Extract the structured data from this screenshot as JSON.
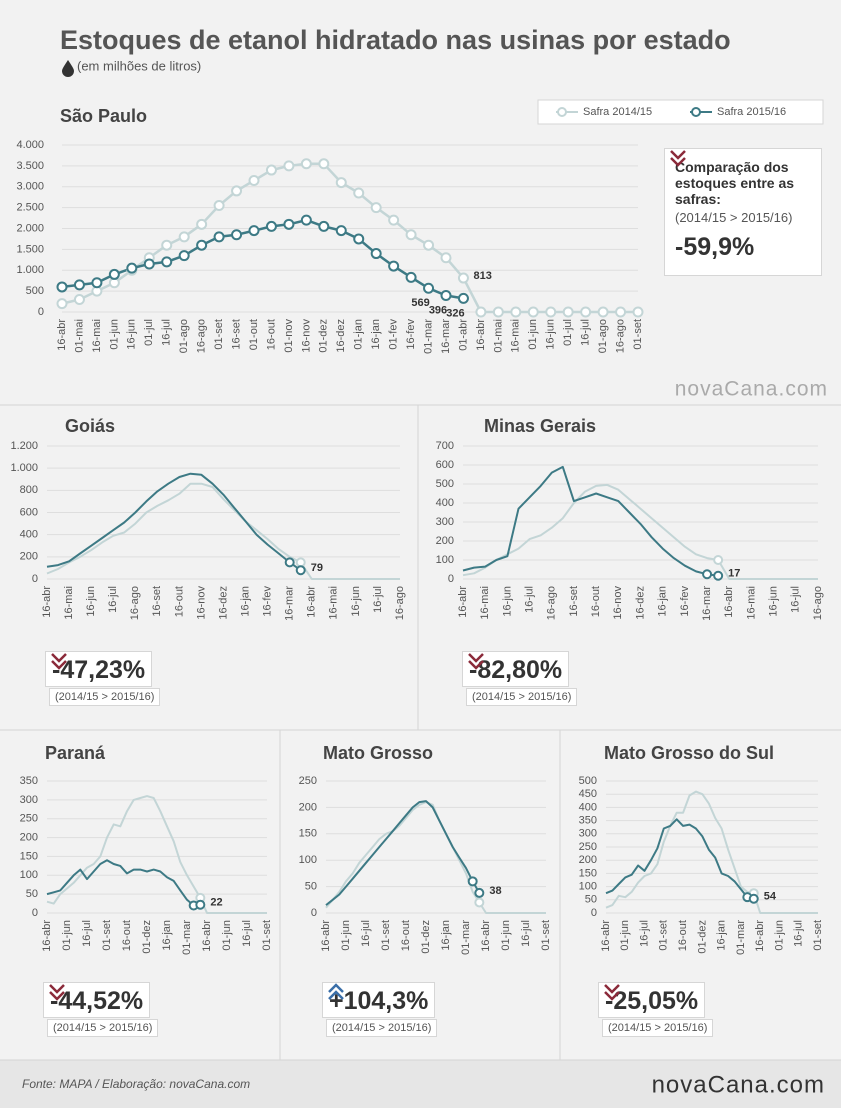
{
  "title": "Estoques de etanol hidratado nas usinas por estado",
  "subtitle": "(em milhões de litros)",
  "source": "Fonte: MAPA  / Elaboração: novaCana.com",
  "logo": "novaCana.com",
  "chart_data": [
    {
      "type": "line",
      "title": "São Paulo",
      "categories": [
        "16-abr",
        "01-mai",
        "16-mai",
        "01-jun",
        "16-jun",
        "01-jul",
        "16-jul",
        "01-ago",
        "16-ago",
        "01-set",
        "16-set",
        "01-out",
        "16-out",
        "01-nov",
        "16-nov",
        "01-dez",
        "16-dez",
        "01-jan",
        "16-jan",
        "01-fev",
        "16-fev",
        "01-mar",
        "16-mar",
        "01-abr",
        "16-abr",
        "01-mai",
        "16-mai",
        "01-jun",
        "16-jun",
        "01-jul",
        "16-jul",
        "01-ago",
        "16-ago",
        "01-set"
      ],
      "series": [
        {
          "name": "Safra 2014/15",
          "color": "#c3d5d6",
          "labeled": [
            23
          ],
          "values": [
            200,
            300,
            500,
            700,
            1000,
            1300,
            1600,
            1800,
            2100,
            2550,
            2900,
            3150,
            3400,
            3500,
            3550,
            3550,
            3100,
            2850,
            2500,
            2200,
            1850,
            1600,
            1300,
            813,
            0,
            0,
            0,
            0,
            0,
            0,
            0,
            0,
            0,
            0
          ]
        },
        {
          "name": "Safra 2015/16",
          "color": "#3d7a85",
          "labeled": [
            21,
            22,
            23
          ],
          "values": [
            600,
            650,
            700,
            900,
            1050,
            1150,
            1200,
            1350,
            1600,
            1800,
            1850,
            1950,
            2050,
            2100,
            2200,
            2050,
            1950,
            1750,
            1400,
            1100,
            830,
            569,
            396,
            326,
            null,
            null,
            null,
            null,
            null,
            null,
            null,
            null,
            null,
            null
          ]
        }
      ],
      "markers": "all",
      "ylim": [
        0,
        4000
      ],
      "yticks": [
        0,
        500,
        {
          "value": 1000,
          "label": "1.000"
        },
        {
          "value": 1500,
          "label": "1.500"
        },
        {
          "value": 2000,
          "label": "2.000"
        },
        {
          "value": 2500,
          "label": "2.500"
        },
        {
          "value": 3000,
          "label": "3.000"
        },
        {
          "value": 3500,
          "label": "3.500"
        },
        {
          "value": 4000,
          "label": "4.000"
        }
      ],
      "grid": true,
      "legend": "top-right",
      "comparison": {
        "heading": "Comparação dos estoques entre as safras:",
        "note": "(2014/15 > 2015/16)",
        "change": "-59,9%",
        "trend": "down"
      }
    },
    {
      "type": "line",
      "title": "Goiás",
      "categories": [
        "16-abr",
        null,
        "16-mai",
        null,
        "16-jun",
        null,
        "16-jul",
        null,
        "16-ago",
        null,
        "16-set",
        null,
        "16-out",
        null,
        "16-nov",
        null,
        "16-dez",
        null,
        "16-jan",
        null,
        "16-fev",
        null,
        "16-mar",
        null,
        "16-abr",
        null,
        "16-mai",
        null,
        "16-jun",
        null,
        "16-jul",
        null,
        "16-ago"
      ],
      "series": [
        {
          "color": "#c3d5d6",
          "marked": [
            23
          ],
          "values": [
            50,
            90,
            150,
            200,
            260,
            330,
            390,
            420,
            500,
            600,
            660,
            710,
            770,
            860,
            860,
            830,
            720,
            620,
            520,
            440,
            360,
            270,
            200,
            150,
            0,
            0,
            0,
            0,
            0,
            0,
            0,
            0,
            0
          ]
        },
        {
          "color": "#3d7a85",
          "marked": [
            22,
            23
          ],
          "labeled": [
            23
          ],
          "values": [
            110,
            125,
            160,
            230,
            300,
            370,
            440,
            510,
            600,
            700,
            790,
            860,
            920,
            950,
            940,
            860,
            760,
            640,
            520,
            400,
            310,
            230,
            150,
            79,
            null,
            null,
            null,
            null,
            null,
            null,
            null,
            null,
            null
          ]
        }
      ],
      "ylim": [
        0,
        1200
      ],
      "yticks": [
        0,
        200,
        400,
        600,
        800,
        {
          "value": 1000,
          "label": "1.000"
        },
        {
          "value": 1200,
          "label": "1.200"
        }
      ],
      "grid": true,
      "comparison": {
        "note": "(2014/15 > 2015/16)",
        "change": "-47,23%",
        "trend": "down"
      }
    },
    {
      "type": "line",
      "title": "Minas Gerais",
      "categories": [
        "16-abr",
        null,
        "16-mai",
        null,
        "16-jun",
        null,
        "16-jul",
        null,
        "16-ago",
        null,
        "16-set",
        null,
        "16-out",
        null,
        "16-nov",
        null,
        "16-dez",
        null,
        "16-jan",
        null,
        "16-fev",
        null,
        "16-mar",
        null,
        "16-abr",
        null,
        "16-mai",
        null,
        "16-jun",
        null,
        "16-jul",
        null,
        "16-ago"
      ],
      "series": [
        {
          "color": "#c3d5d6",
          "marked": [
            23
          ],
          "values": [
            20,
            30,
            60,
            100,
            130,
            160,
            210,
            230,
            270,
            320,
            400,
            460,
            490,
            495,
            470,
            420,
            370,
            320,
            270,
            220,
            170,
            130,
            110,
            100,
            0,
            0,
            0,
            0,
            0,
            0,
            0,
            0,
            0
          ]
        },
        {
          "color": "#3d7a85",
          "marked": [
            22,
            23
          ],
          "labeled": [
            23
          ],
          "values": [
            45,
            60,
            65,
            100,
            120,
            370,
            430,
            490,
            560,
            590,
            410,
            430,
            450,
            430,
            410,
            350,
            290,
            220,
            160,
            110,
            70,
            40,
            25,
            17,
            null,
            null,
            null,
            null,
            null,
            null,
            null,
            null,
            null
          ]
        }
      ],
      "ylim": [
        0,
        700
      ],
      "yticks": [
        0,
        100,
        200,
        300,
        400,
        500,
        600,
        700
      ],
      "grid": true,
      "comparison": {
        "note": "(2014/15 > 2015/16)",
        "change": "-82,80%",
        "trend": "down"
      }
    },
    {
      "type": "line",
      "title": "Paraná",
      "categories": [
        "16-abr",
        null,
        null,
        "01-jun",
        null,
        null,
        "16-jul",
        null,
        null,
        "01-set",
        null,
        null,
        "16-out",
        null,
        null,
        "01-dez",
        null,
        null,
        "16-jan",
        null,
        null,
        "01-mar",
        null,
        null,
        "16-abr",
        null,
        null,
        "01-jun",
        null,
        null,
        "16-jul",
        null,
        null,
        "01-set"
      ],
      "series": [
        {
          "color": "#c3d5d6",
          "marked": [
            23
          ],
          "values": [
            30,
            25,
            50,
            65,
            80,
            100,
            120,
            130,
            150,
            200,
            235,
            230,
            270,
            300,
            305,
            310,
            305,
            270,
            230,
            190,
            135,
            100,
            70,
            40,
            0,
            0,
            0,
            0,
            0,
            0,
            0,
            0,
            0,
            0
          ]
        },
        {
          "color": "#3d7a85",
          "marked": [
            22,
            23
          ],
          "labeled": [
            23
          ],
          "values": [
            50,
            55,
            60,
            80,
            100,
            115,
            90,
            110,
            130,
            140,
            130,
            125,
            105,
            115,
            115,
            110,
            115,
            110,
            95,
            85,
            60,
            35,
            20,
            22,
            null,
            null,
            null,
            null,
            null,
            null,
            null,
            null,
            null,
            null
          ]
        }
      ],
      "ylim": [
        0,
        350
      ],
      "yticks": [
        0,
        50,
        100,
        150,
        200,
        250,
        300,
        350
      ],
      "grid": true,
      "comparison": {
        "note": "(2014/15 > 2015/16)",
        "change": "-44,52%",
        "trend": "down"
      }
    },
    {
      "type": "line",
      "title": "Mato Grosso",
      "categories": [
        "16-abr",
        null,
        null,
        "01-jun",
        null,
        null,
        "16-jul",
        null,
        null,
        "01-set",
        null,
        null,
        "16-out",
        null,
        null,
        "01-dez",
        null,
        null,
        "16-jan",
        null,
        null,
        "01-mar",
        null,
        null,
        "16-abr",
        null,
        null,
        "01-jun",
        null,
        null,
        "16-jul",
        null,
        null,
        "01-set"
      ],
      "series": [
        {
          "color": "#c3d5d6",
          "marked": [
            23
          ],
          "values": [
            10,
            25,
            40,
            60,
            75,
            95,
            110,
            125,
            140,
            150,
            155,
            165,
            180,
            195,
            205,
            210,
            205,
            175,
            150,
            125,
            100,
            75,
            40,
            20,
            0,
            0,
            0,
            0,
            0,
            0,
            0,
            0,
            0,
            0
          ]
        },
        {
          "color": "#3d7a85",
          "marked": [
            22,
            23
          ],
          "labeled": [
            23
          ],
          "values": [
            15,
            25,
            35,
            50,
            65,
            80,
            95,
            110,
            125,
            140,
            155,
            170,
            185,
            200,
            210,
            212,
            200,
            175,
            150,
            125,
            105,
            85,
            60,
            38,
            null,
            null,
            null,
            null,
            null,
            null,
            null,
            null,
            null,
            null
          ]
        }
      ],
      "ylim": [
        0,
        250
      ],
      "yticks": [
        0,
        50,
        100,
        150,
        200,
        250
      ],
      "grid": true,
      "comparison": {
        "note": "(2014/15 > 2015/16)",
        "change": "+104,3%",
        "trend": "up"
      }
    },
    {
      "type": "line",
      "title": "Mato Grosso do Sul",
      "categories": [
        "16-abr",
        null,
        null,
        "01-jun",
        null,
        null,
        "16-jul",
        null,
        null,
        "01-set",
        null,
        null,
        "16-out",
        null,
        null,
        "01-dez",
        null,
        null,
        "16-jan",
        null,
        null,
        "01-mar",
        null,
        null,
        "16-abr",
        null,
        null,
        "01-jun",
        null,
        null,
        "16-jul",
        null,
        null,
        "01-set"
      ],
      "series": [
        {
          "color": "#c3d5d6",
          "marked": [
            23
          ],
          "values": [
            20,
            30,
            65,
            60,
            80,
            115,
            140,
            150,
            185,
            270,
            330,
            380,
            380,
            445,
            460,
            450,
            415,
            360,
            320,
            240,
            170,
            100,
            80,
            75,
            0,
            0,
            0,
            0,
            0,
            0,
            0,
            0,
            0,
            0
          ]
        },
        {
          "color": "#3d7a85",
          "marked": [
            22,
            23
          ],
          "labeled": [
            23
          ],
          "values": [
            75,
            85,
            110,
            135,
            145,
            180,
            160,
            200,
            245,
            320,
            330,
            355,
            330,
            335,
            320,
            290,
            240,
            210,
            150,
            140,
            120,
            90,
            60,
            54,
            null,
            null,
            null,
            null,
            null,
            null,
            null,
            null,
            null,
            null
          ]
        }
      ],
      "ylim": [
        0,
        500
      ],
      "yticks": [
        0,
        50,
        100,
        150,
        200,
        250,
        300,
        350,
        400,
        450,
        500
      ],
      "grid": true,
      "comparison": {
        "note": "(2014/15 > 2015/16)",
        "change": "-25,05%",
        "trend": "down"
      }
    }
  ]
}
